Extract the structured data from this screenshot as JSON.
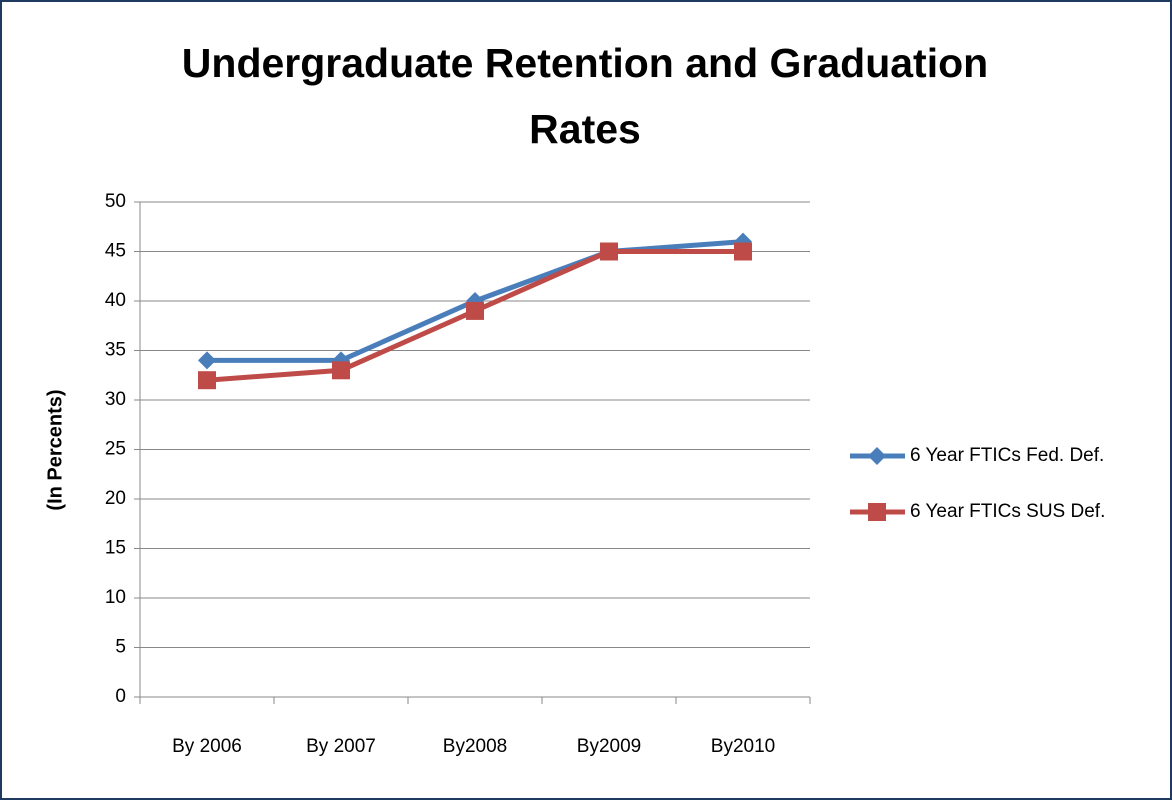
{
  "chart_data": {
    "type": "line",
    "title": "Undergraduate Retention and Graduation Rates",
    "y_label": "(In Percents)",
    "categories": [
      "By 2006",
      "By 2007",
      "By2008",
      "By2009",
      "By2010"
    ],
    "series": [
      {
        "name": "6 Year FTICs Fed. Def.",
        "color": "#4a7ebb",
        "marker": "diamond",
        "values": [
          34,
          34,
          40,
          45,
          46
        ]
      },
      {
        "name": "6 Year FTICs SUS Def.",
        "color": "#be4b48",
        "marker": "square",
        "values": [
          32,
          33,
          39,
          45,
          45
        ]
      }
    ],
    "ylim": [
      0,
      50
    ],
    "yticks": [
      0,
      5,
      10,
      15,
      20,
      25,
      30,
      35,
      40,
      45,
      50
    ],
    "grid": true,
    "legend": "right"
  }
}
